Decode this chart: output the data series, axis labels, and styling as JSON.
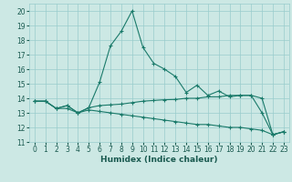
{
  "xlabel": "Humidex (Indice chaleur)",
  "bg_color": "#cce8e4",
  "grid_color": "#99cccc",
  "line_color": "#1a7a6a",
  "xlim": [
    -0.5,
    23.5
  ],
  "ylim": [
    11,
    20.5
  ],
  "yticks": [
    11,
    12,
    13,
    14,
    15,
    16,
    17,
    18,
    19,
    20
  ],
  "xticks": [
    0,
    1,
    2,
    3,
    4,
    5,
    6,
    7,
    8,
    9,
    10,
    11,
    12,
    13,
    14,
    15,
    16,
    17,
    18,
    19,
    20,
    21,
    22,
    23
  ],
  "line1_x": [
    0,
    1,
    2,
    3,
    4,
    5,
    6,
    7,
    8,
    9,
    10,
    11,
    12,
    13,
    14,
    15,
    16,
    17,
    18,
    19,
    20,
    21,
    22,
    23
  ],
  "line1_y": [
    13.8,
    13.8,
    13.3,
    13.5,
    13.0,
    13.35,
    15.1,
    17.6,
    18.6,
    20.0,
    17.5,
    16.4,
    16.0,
    15.5,
    14.4,
    14.9,
    14.2,
    14.5,
    14.1,
    14.2,
    14.2,
    13.0,
    11.5,
    11.7
  ],
  "line2_x": [
    0,
    1,
    2,
    3,
    4,
    5,
    6,
    7,
    8,
    9,
    10,
    11,
    12,
    13,
    14,
    15,
    16,
    17,
    18,
    19,
    20,
    21,
    22,
    23
  ],
  "line2_y": [
    13.8,
    13.8,
    13.3,
    13.5,
    13.0,
    13.35,
    13.5,
    13.55,
    13.6,
    13.7,
    13.8,
    13.85,
    13.9,
    13.92,
    14.0,
    14.0,
    14.1,
    14.1,
    14.2,
    14.2,
    14.2,
    14.0,
    11.5,
    11.7
  ],
  "line3_x": [
    0,
    1,
    2,
    3,
    4,
    5,
    6,
    7,
    8,
    9,
    10,
    11,
    12,
    13,
    14,
    15,
    16,
    17,
    18,
    19,
    20,
    21,
    22,
    23
  ],
  "line3_y": [
    13.8,
    13.8,
    13.3,
    13.3,
    13.0,
    13.2,
    13.1,
    13.0,
    12.9,
    12.8,
    12.7,
    12.6,
    12.5,
    12.4,
    12.3,
    12.2,
    12.2,
    12.1,
    12.0,
    12.0,
    11.9,
    11.8,
    11.5,
    11.7
  ],
  "tick_fontsize": 5.5,
  "xlabel_fontsize": 6.5
}
